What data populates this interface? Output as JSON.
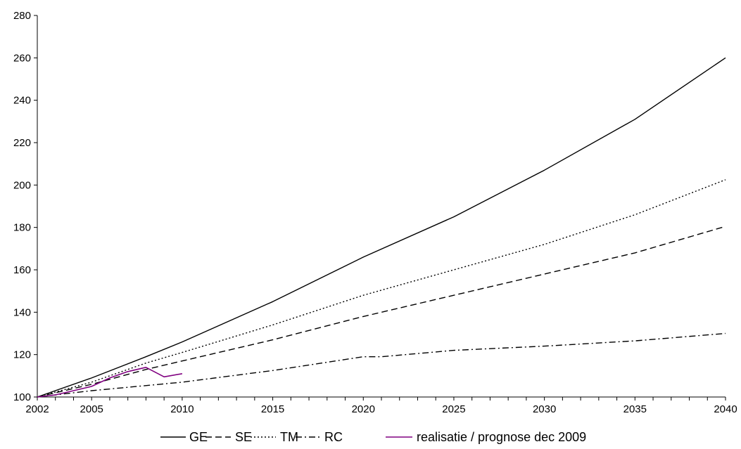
{
  "chart_data": {
    "type": "line",
    "title": "",
    "xlabel": "",
    "ylabel": "",
    "xlim": [
      2002,
      2040
    ],
    "ylim": [
      100,
      280
    ],
    "x_ticks": [
      2002,
      2005,
      2010,
      2015,
      2020,
      2025,
      2030,
      2035,
      2040
    ],
    "y_ticks": [
      100,
      120,
      140,
      160,
      180,
      200,
      220,
      240,
      260,
      280
    ],
    "grid": false,
    "legend_position": "bottom",
    "series": [
      {
        "name": "GE",
        "style": "solid",
        "color": "#000000",
        "x": [
          2002,
          2005,
          2008,
          2010,
          2015,
          2020,
          2025,
          2030,
          2035,
          2040
        ],
        "y": [
          100,
          109,
          119,
          126,
          145,
          166,
          185,
          207,
          231,
          260
        ]
      },
      {
        "name": "SE",
        "style": "dashed",
        "color": "#000000",
        "x": [
          2002,
          2005,
          2008,
          2010,
          2015,
          2020,
          2025,
          2030,
          2035,
          2040
        ],
        "y": [
          100,
          106,
          113,
          117,
          127,
          138,
          148,
          158,
          168,
          180.5
        ]
      },
      {
        "name": "TM",
        "style": "dotted",
        "color": "#000000",
        "x": [
          2002,
          2005,
          2008,
          2010,
          2015,
          2020,
          2025,
          2030,
          2035,
          2040
        ],
        "y": [
          100,
          107,
          116,
          121,
          134,
          148,
          160,
          172,
          186,
          202.5
        ]
      },
      {
        "name": "RC",
        "style": "dashdot",
        "color": "#000000",
        "x": [
          2002,
          2005,
          2010,
          2015,
          2020,
          2021,
          2025,
          2030,
          2035,
          2040
        ],
        "y": [
          100,
          103,
          107,
          112.5,
          119,
          119,
          122,
          124,
          126.5,
          130
        ]
      },
      {
        "name": "realisatie / prognose dec 2009",
        "style": "solid",
        "color": "#800080",
        "x": [
          2002,
          2003,
          2004,
          2005,
          2006,
          2007,
          2008,
          2009,
          2010
        ],
        "y": [
          100,
          101,
          103,
          105,
          109,
          112,
          114,
          109.5,
          111
        ]
      }
    ]
  }
}
